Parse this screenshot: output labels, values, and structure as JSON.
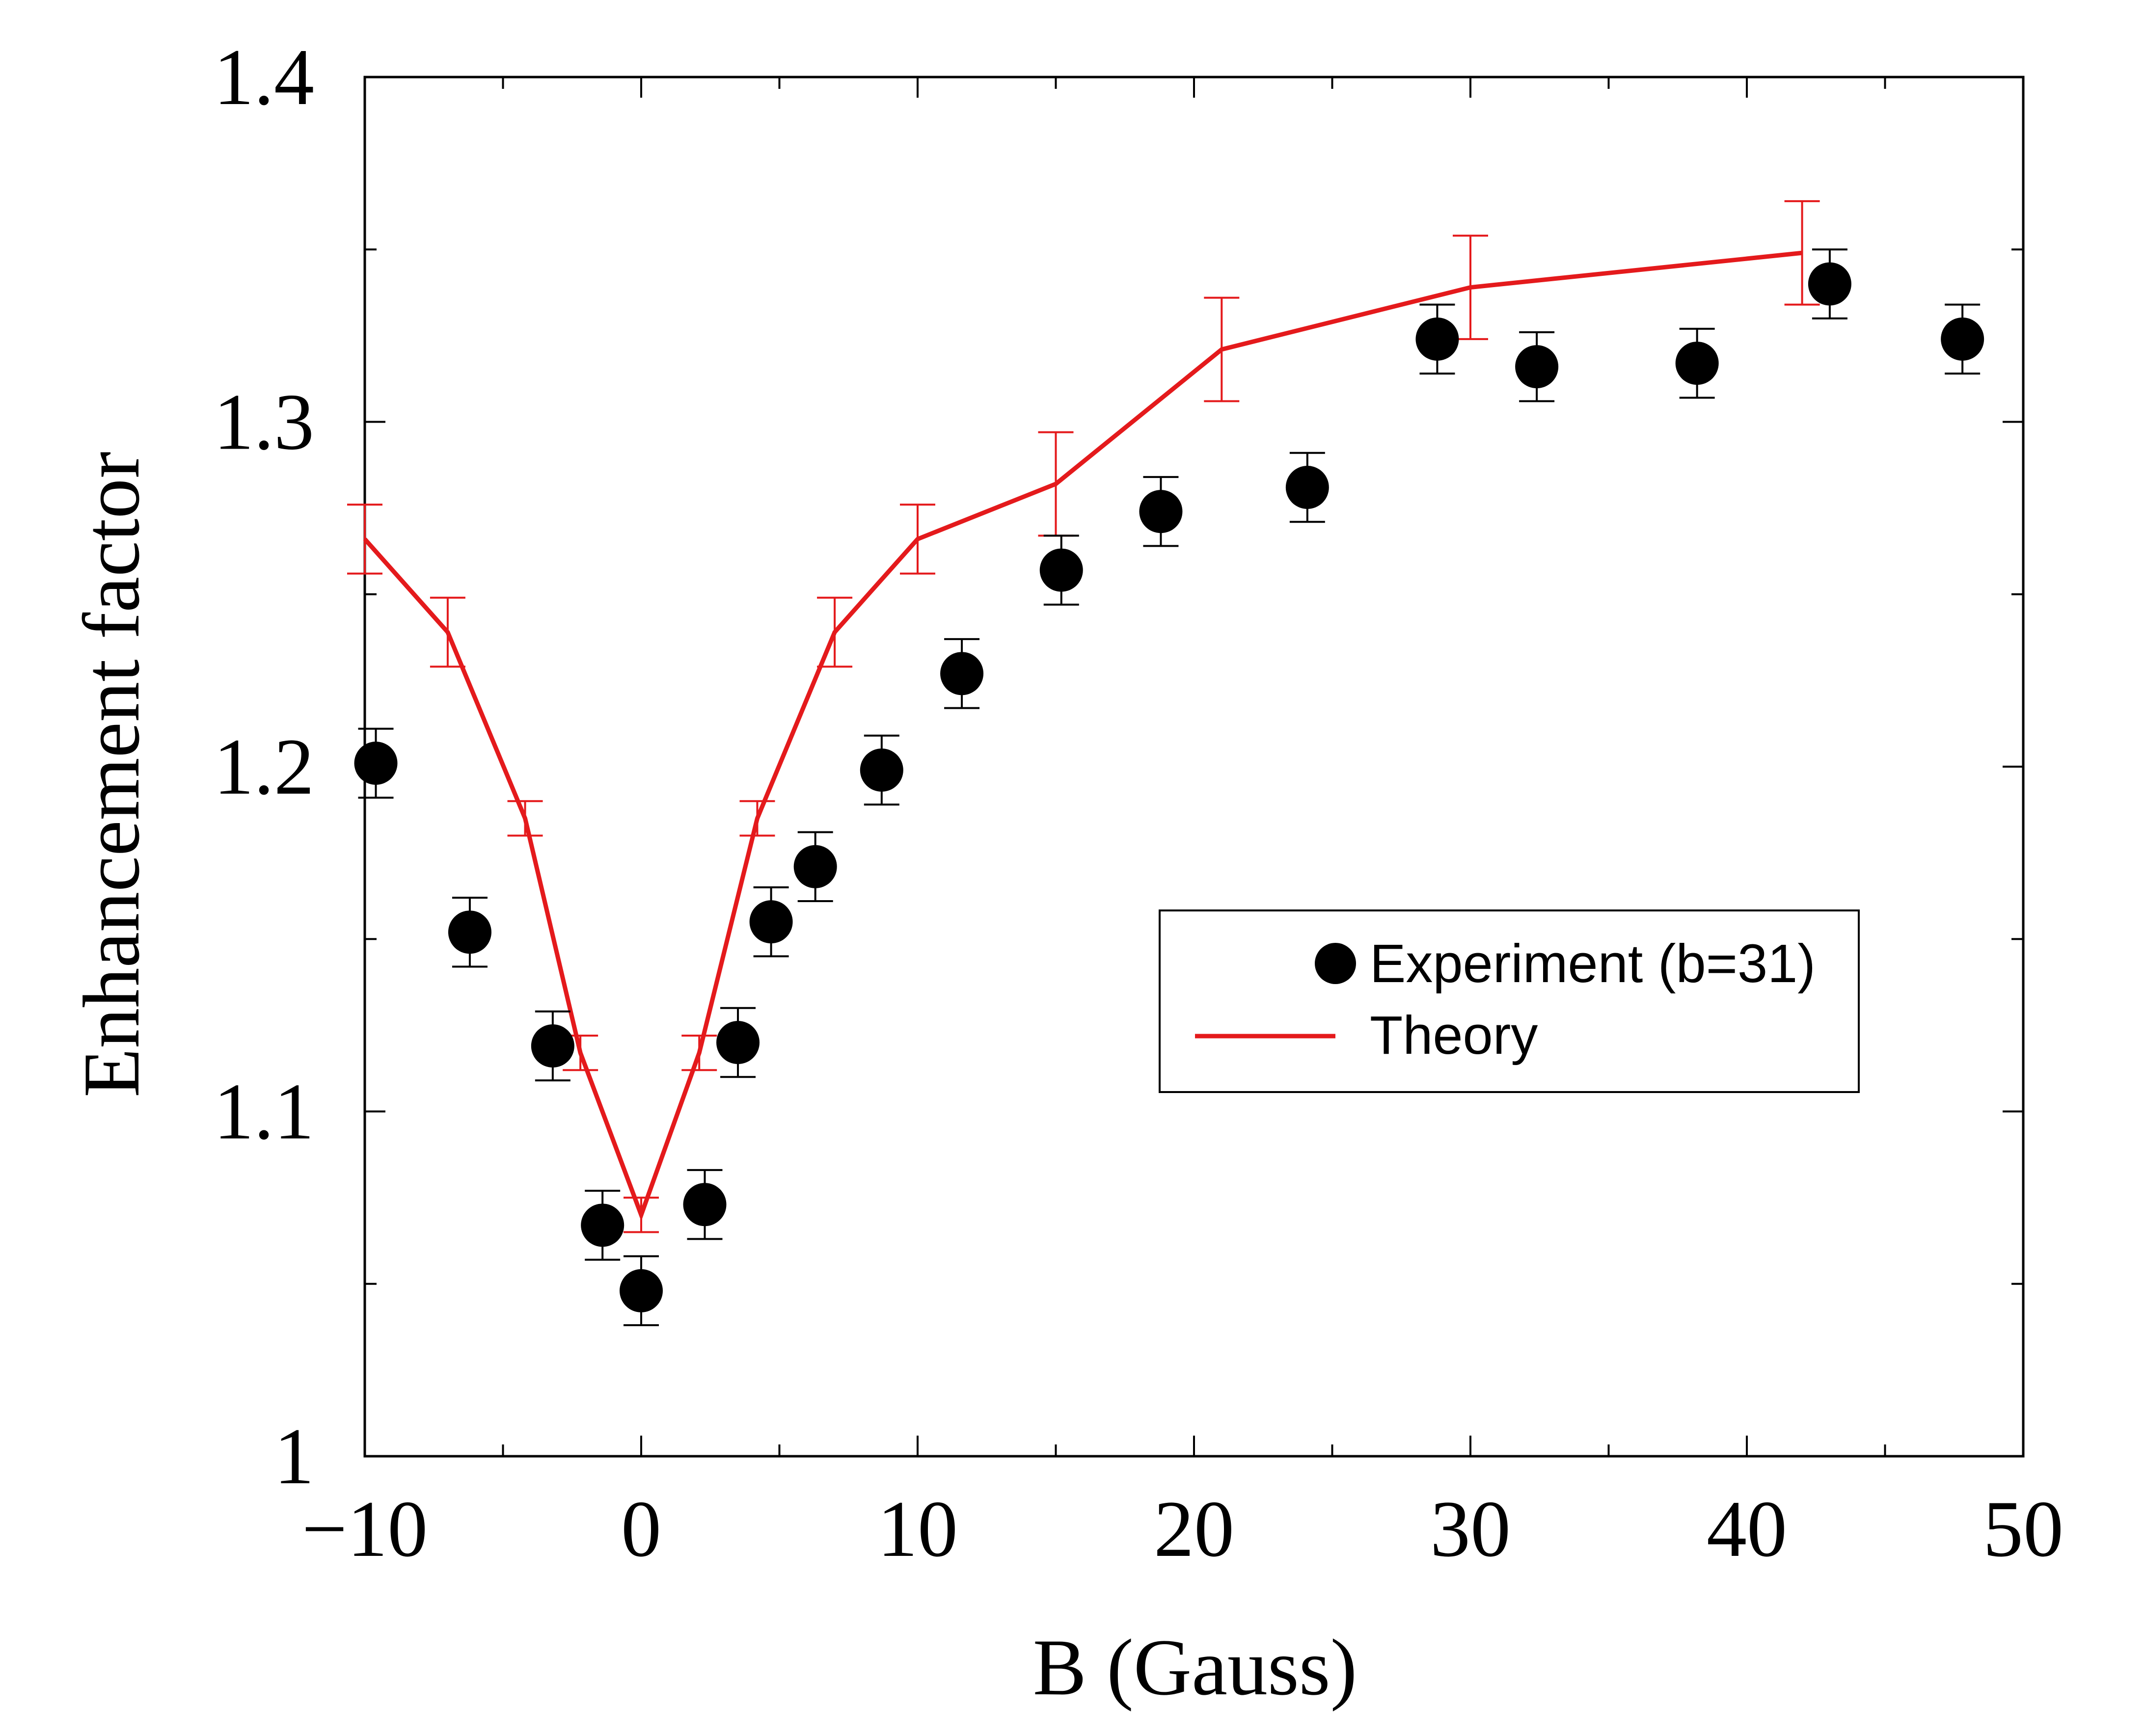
{
  "chart_data": {
    "type": "scatter",
    "title": "",
    "xlabel": "B (Gauss)",
    "ylabel": "Enhancement factor",
    "xlim": [
      -10,
      50
    ],
    "ylim": [
      1.0,
      1.4
    ],
    "x_ticks": [
      -10,
      0,
      10,
      20,
      30,
      40,
      50
    ],
    "x_tick_labels": [
      "−10",
      "0",
      "10",
      "20",
      "30",
      "40",
      "50"
    ],
    "y_ticks": [
      1.0,
      1.1,
      1.2,
      1.3,
      1.4
    ],
    "y_tick_labels": [
      "1",
      "1.1",
      "1.2",
      "1.3",
      "1.4"
    ],
    "grid": false,
    "legend_position": "center-right",
    "series": [
      {
        "name": "Experiment (b=31)",
        "kind": "points_with_errorbars",
        "color": "#000000",
        "x": [
          -9.6,
          -6.2,
          -3.2,
          -1.4,
          0.0,
          2.3,
          3.5,
          4.7,
          6.3,
          8.7,
          11.6,
          15.2,
          18.8,
          24.1,
          28.8,
          32.4,
          38.2,
          43.0,
          47.8
        ],
        "y": [
          1.201,
          1.152,
          1.119,
          1.067,
          1.048,
          1.073,
          1.12,
          1.155,
          1.171,
          1.199,
          1.227,
          1.257,
          1.274,
          1.281,
          1.324,
          1.316,
          1.317,
          1.34,
          1.324
        ],
        "err": [
          0.01,
          0.01,
          0.01,
          0.01,
          0.01,
          0.01,
          0.01,
          0.01,
          0.01,
          0.01,
          0.01,
          0.01,
          0.01,
          0.01,
          0.01,
          0.01,
          0.01,
          0.01,
          0.01
        ]
      },
      {
        "name": "Theory",
        "kind": "line_with_errorbars",
        "color": "#e41a1c",
        "x": [
          -10,
          -7,
          -4.2,
          -2.2,
          0,
          2.1,
          4.2,
          7,
          10,
          15,
          21,
          30,
          42
        ],
        "y": [
          1.266,
          1.239,
          1.185,
          1.117,
          1.07,
          1.117,
          1.185,
          1.239,
          1.266,
          1.282,
          1.321,
          1.339,
          1.349
        ],
        "err": [
          0.01,
          0.01,
          0.005,
          0.005,
          0.005,
          0.005,
          0.005,
          0.01,
          0.01,
          0.015,
          0.015,
          0.015,
          0.015
        ]
      }
    ]
  }
}
